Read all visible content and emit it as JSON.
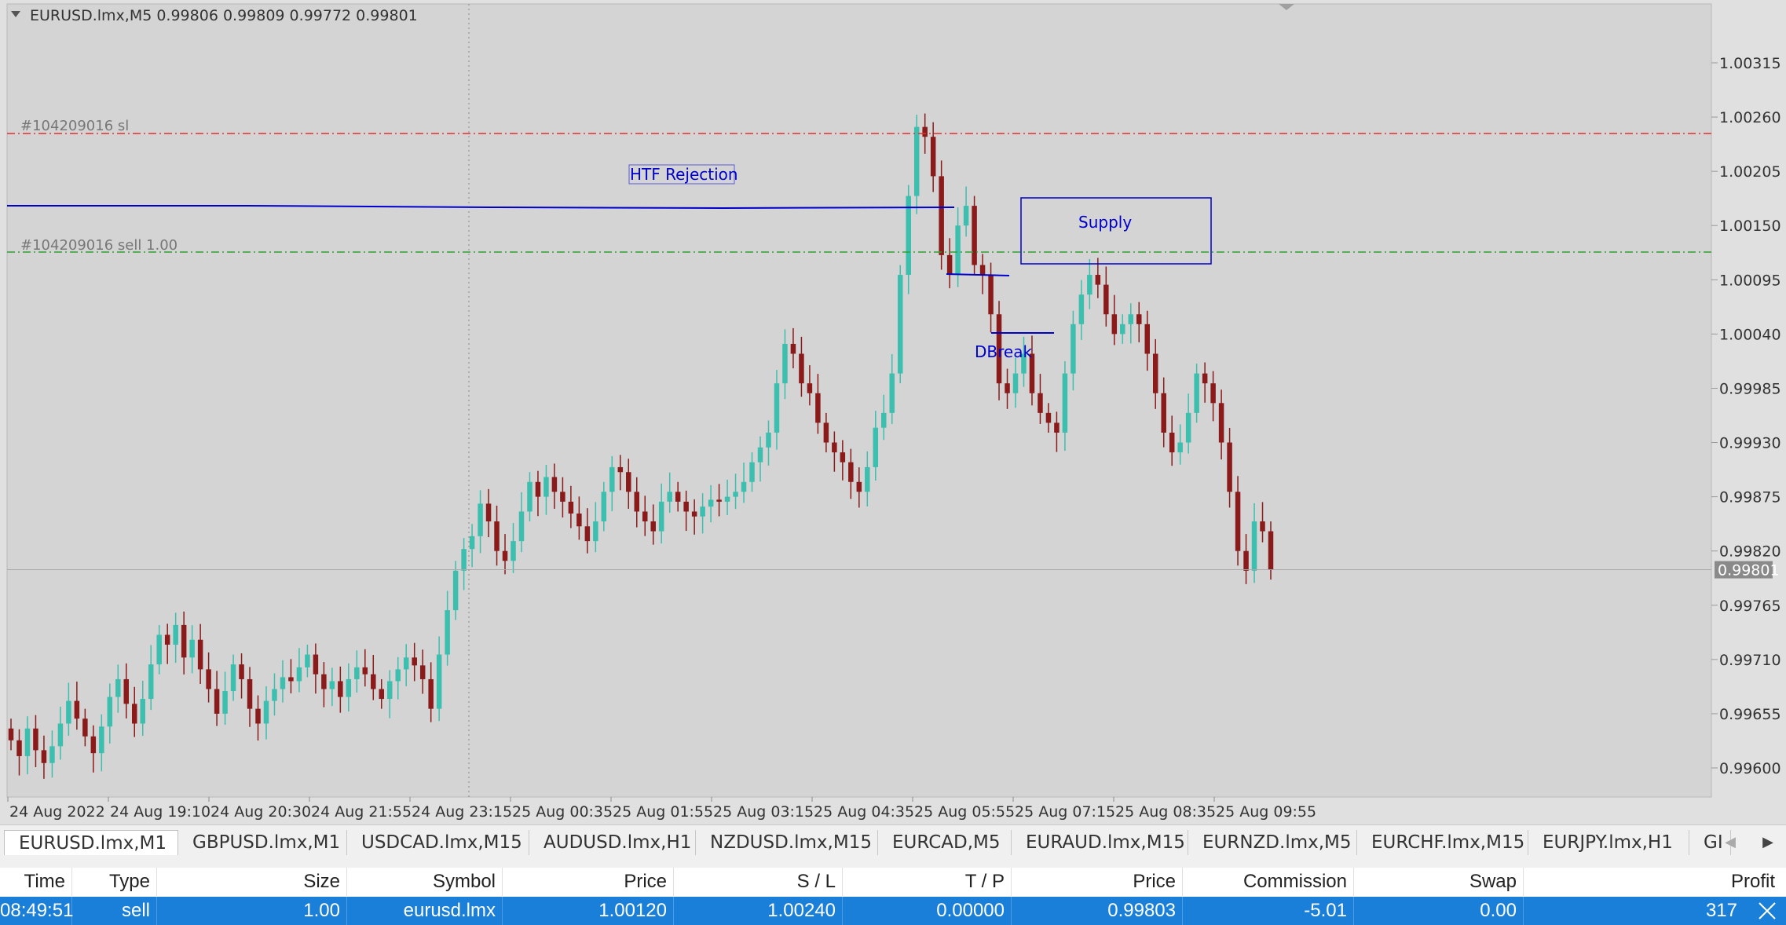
{
  "chart": {
    "header": "EURUSD.lmx,M5  0.99806 0.99809 0.99772 0.99801",
    "current_price": "0.99801",
    "price_levels": [
      "1.00315",
      "1.00260",
      "1.00205",
      "1.00150",
      "1.00095",
      "1.00040",
      "0.99985",
      "0.99930",
      "0.99875",
      "0.99820",
      "0.99765",
      "0.99710",
      "0.99655",
      "0.99600"
    ],
    "time_labels": [
      "24 Aug 2022",
      "24 Aug 19:10",
      "24 Aug 20:30",
      "24 Aug 21:55",
      "24 Aug 23:15",
      "25 Aug 00:35",
      "25 Aug 01:55",
      "25 Aug 03:15",
      "25 Aug 04:35",
      "25 Aug 05:55",
      "25 Aug 07:15",
      "25 Aug 08:35",
      "25 Aug 09:55"
    ],
    "sl_line_label": "#104209016 sl",
    "entry_line_label": "#104209016 sell 1.00",
    "annotations": {
      "htf_rejection": "HTF Rejection",
      "supply": "Supply",
      "dbreak": "DBreak"
    },
    "colors": {
      "bull": "#3cbfae",
      "bear": "#8b1a1a",
      "sl_line": "#e03030",
      "entry_line": "#2ea02e",
      "annotation": "#0000cc",
      "background": "#e0e0e0"
    }
  },
  "tabs": [
    {
      "label": "EURUSD.lmx,M1"
    },
    {
      "label": "GBPUSD.lmx,M1"
    },
    {
      "label": "USDCAD.lmx,M15"
    },
    {
      "label": "AUDUSD.lmx,H1"
    },
    {
      "label": "NZDUSD.lmx,M15"
    },
    {
      "label": "EURCAD,M5"
    },
    {
      "label": "EURAUD.lmx,M15"
    },
    {
      "label": "EURNZD.lmx,M5"
    },
    {
      "label": "EURCHF.lmx,M15"
    },
    {
      "label": "EURJPY.lmx,H1"
    },
    {
      "label": "GI"
    }
  ],
  "tab_arrows": {
    "left": "◀",
    "right": "▶"
  },
  "table": {
    "headers": [
      "Time",
      "Type",
      "Size",
      "Symbol",
      "Price",
      "S / L",
      "T / P",
      "Price",
      "Commission",
      "Swap",
      "Profit"
    ],
    "row": [
      "08:49:51",
      "sell",
      "1.00",
      "eurusd.lmx",
      "1.00120",
      "1.00240",
      "0.00000",
      "0.99803",
      "-5.01",
      "0.00",
      "317"
    ],
    "close_icon": "close-icon"
  }
}
